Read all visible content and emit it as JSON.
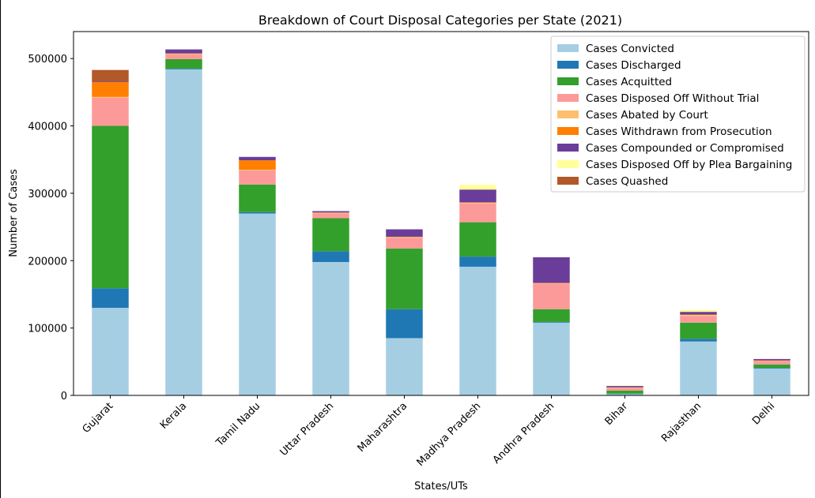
{
  "chart_data": {
    "type": "bar",
    "stacked": true,
    "title": "Breakdown of Court Disposal Categories per State (2021)",
    "xlabel": "States/UTs",
    "ylabel": "Number of Cases",
    "ylim": [
      0,
      540000
    ],
    "yticks": [
      0,
      100000,
      200000,
      300000,
      400000,
      500000
    ],
    "ytick_labels": [
      "0",
      "100000",
      "200000",
      "300000",
      "400000",
      "500000"
    ],
    "grid": false,
    "legend_position": "top-right",
    "categories": [
      "Gujarat",
      "Kerala",
      "Tamil Nadu",
      "Uttar Pradesh",
      "Maharashtra",
      "Madhya Pradesh",
      "Andhra Pradesh",
      "Bihar",
      "Rajasthan",
      "Delhi"
    ],
    "series": [
      {
        "name": "Cases Convicted",
        "color": "#a6cee3",
        "values": [
          130000,
          484000,
          270000,
          198000,
          85000,
          191000,
          108000,
          2000,
          80000,
          40000
        ]
      },
      {
        "name": "Cases Discharged",
        "color": "#1f78b4",
        "values": [
          29000,
          1000,
          2000,
          16000,
          43000,
          15000,
          1000,
          500,
          4000,
          1000
        ]
      },
      {
        "name": "Cases Acquitted",
        "color": "#33a02c",
        "values": [
          241000,
          14000,
          41000,
          49000,
          90000,
          51000,
          19000,
          4500,
          24000,
          5000
        ]
      },
      {
        "name": "Cases Disposed Off Without Trial",
        "color": "#fb9a99",
        "values": [
          42000,
          7000,
          21000,
          7000,
          16000,
          28000,
          38000,
          4000,
          10000,
          5000
        ]
      },
      {
        "name": "Cases Abated by Court",
        "color": "#fdbf6f",
        "values": [
          1000,
          1000,
          1000,
          1000,
          1000,
          1000,
          500,
          500,
          1500,
          500
        ]
      },
      {
        "name": "Cases Withdrawn from Prosecution",
        "color": "#ff7f00",
        "values": [
          22000,
          500,
          14000,
          500,
          500,
          500,
          500,
          500,
          500,
          500
        ]
      },
      {
        "name": "Cases Compounded or Compromised",
        "color": "#6a3d9a",
        "values": [
          1000,
          6000,
          5000,
          2000,
          11000,
          19000,
          38000,
          2000,
          4000,
          2000
        ]
      },
      {
        "name": "Cases Disposed Off by Plea Bargaining",
        "color": "#ffff99",
        "values": [
          0,
          0,
          0,
          0,
          0,
          7000,
          0,
          500,
          3000,
          0
        ]
      },
      {
        "name": "Cases Quashed",
        "color": "#b15928",
        "values": [
          17000,
          0,
          0,
          0,
          0,
          0,
          0,
          0,
          0,
          0
        ]
      }
    ]
  }
}
